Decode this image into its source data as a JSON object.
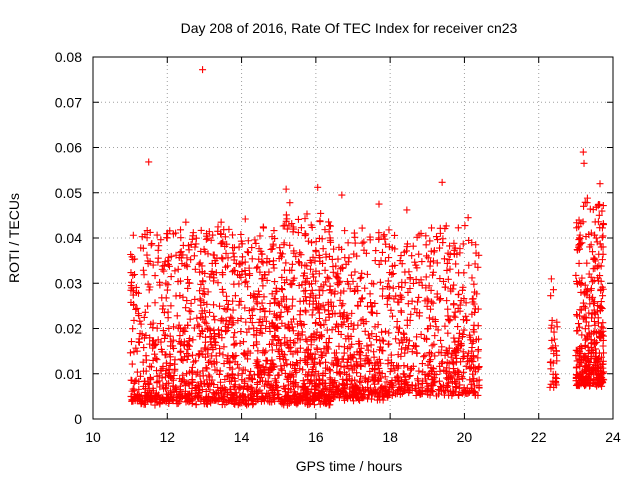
{
  "chart_data": {
    "type": "scatter",
    "title": "Day 208 of 2016, Rate Of TEC Index for receiver cn23",
    "xlabel": "GPS time / hours",
    "ylabel": "ROTI / TECUs",
    "xlim": [
      10,
      24
    ],
    "ylim": [
      0,
      0.08
    ],
    "xticks": [
      "10",
      "12",
      "14",
      "16",
      "18",
      "20",
      "22",
      "24"
    ],
    "yticks": [
      "0",
      "0.01",
      "0.02",
      "0.03",
      "0.04",
      "0.05",
      "0.06",
      "0.07",
      "0.08"
    ],
    "grid": true,
    "marker": "+",
    "color": "#ff0000",
    "outliers": [
      {
        "x": 12.95,
        "y": 0.0772
      },
      {
        "x": 11.5,
        "y": 0.0568
      },
      {
        "x": 19.4,
        "y": 0.0523
      },
      {
        "x": 23.2,
        "y": 0.059
      },
      {
        "x": 23.22,
        "y": 0.0565
      },
      {
        "x": 23.65,
        "y": 0.052
      },
      {
        "x": 16.05,
        "y": 0.0512
      },
      {
        "x": 15.2,
        "y": 0.0508
      },
      {
        "x": 16.7,
        "y": 0.0495
      },
      {
        "x": 15.3,
        "y": 0.0478
      },
      {
        "x": 17.7,
        "y": 0.0475
      },
      {
        "x": 18.45,
        "y": 0.0462
      },
      {
        "x": 20.1,
        "y": 0.0445
      },
      {
        "x": 13.45,
        "y": 0.0435
      },
      {
        "x": 12.5,
        "y": 0.0435
      },
      {
        "x": 14.1,
        "y": 0.0442
      }
    ],
    "clusters": [
      {
        "x_start": 11.0,
        "x_end": 15.0,
        "y_min": 0.004,
        "y_max": 0.042,
        "density": 1100
      },
      {
        "x_start": 15.0,
        "x_end": 16.4,
        "y_min": 0.004,
        "y_max": 0.045,
        "density": 520
      },
      {
        "x_start": 16.4,
        "x_end": 18.0,
        "y_min": 0.005,
        "y_max": 0.042,
        "density": 420
      },
      {
        "x_start": 18.0,
        "x_end": 19.0,
        "y_min": 0.006,
        "y_max": 0.041,
        "density": 200
      },
      {
        "x_start": 19.0,
        "x_end": 20.4,
        "y_min": 0.006,
        "y_max": 0.043,
        "density": 330
      },
      {
        "x_start": 22.3,
        "x_end": 22.5,
        "y_min": 0.007,
        "y_max": 0.031,
        "density": 35
      },
      {
        "x_start": 23.0,
        "x_end": 23.75,
        "y_min": 0.008,
        "y_max": 0.048,
        "density": 380
      }
    ]
  }
}
